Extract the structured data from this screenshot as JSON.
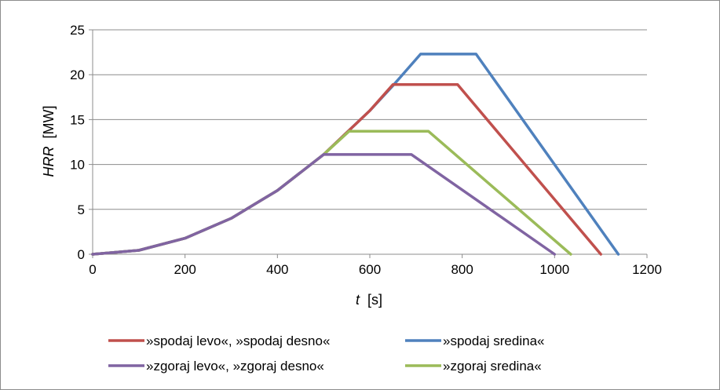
{
  "chart_data": {
    "type": "line",
    "xlabel_var": "t",
    "xlabel_unit": "[s]",
    "ylabel_var": "HRR",
    "ylabel_unit": "[MW]",
    "xlim": [
      0,
      1200
    ],
    "ylim": [
      0,
      25
    ],
    "xticks": [
      0,
      200,
      400,
      600,
      800,
      1000,
      1200
    ],
    "yticks": [
      0,
      5,
      10,
      15,
      20,
      25
    ],
    "grid": "horizontal",
    "legend_position": "bottom",
    "series": [
      {
        "name": "»spodaj levo«, »spodaj desno«",
        "color": "#c0504d",
        "x": [
          0,
          100,
          200,
          300,
          400,
          500,
          600,
          650,
          790,
          1100
        ],
        "y": [
          0,
          0.44,
          1.78,
          4.0,
          7.11,
          11.11,
          16.0,
          18.9,
          18.9,
          0
        ]
      },
      {
        "name": "»spodaj sredina«",
        "color": "#4f81bd",
        "x": [
          0,
          100,
          200,
          300,
          400,
          500,
          600,
          650,
          710,
          830,
          1138
        ],
        "y": [
          0,
          0.44,
          1.78,
          4.0,
          7.11,
          11.11,
          16.0,
          18.78,
          22.3,
          22.3,
          0
        ]
      },
      {
        "name": "»zgoraj levo«, »zgoraj desno«",
        "color": "#8064a2",
        "x": [
          0,
          100,
          200,
          300,
          400,
          500,
          690,
          1000
        ],
        "y": [
          0,
          0.44,
          1.78,
          4.0,
          7.11,
          11.11,
          11.11,
          0
        ]
      },
      {
        "name": "»zgoraj sredina«",
        "color": "#9bbb59",
        "x": [
          0,
          100,
          200,
          300,
          400,
          500,
          555,
          727,
          1035
        ],
        "y": [
          0,
          0.44,
          1.78,
          4.0,
          7.11,
          11.11,
          13.7,
          13.7,
          0
        ]
      }
    ]
  }
}
